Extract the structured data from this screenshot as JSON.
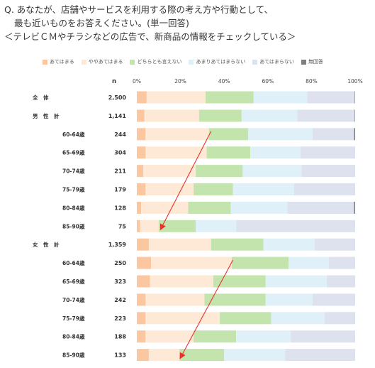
{
  "question": {
    "line1": "Q. あなたが、店舗やサービスを利用する際の考え方や行動として、",
    "line2": "最も近いものをお答えください。(単一回答)",
    "line3": "＜テレビＣＭやチラシなどの広告で、新商品の情報をチェックしている＞"
  },
  "colors": [
    "#fbc7a0",
    "#fde9d6",
    "#c3e4ad",
    "#dff0f8",
    "#dde2ee",
    "#7f7f7f"
  ],
  "chart_data": {
    "type": "bar",
    "orientation": "horizontal",
    "stacked": true,
    "n_header": "n",
    "xlim": [
      0,
      100
    ],
    "xticks": [
      "0%",
      "20%",
      "40%",
      "60%",
      "80%",
      "100%"
    ],
    "legend": [
      "あてはまる",
      "ややあてはまる",
      "どちらとも言えない",
      "あまりあてはまらない",
      "あてはまらない",
      "無回答"
    ],
    "legend_position": "top",
    "rows": [
      {
        "label": "全　体",
        "group": true,
        "n": "2,500",
        "values": [
          4.5,
          27,
          22,
          24.5,
          21.8,
          0.2
        ]
      },
      {
        "label": "男　性　計",
        "group": true,
        "n": "1,141",
        "values": [
          3.5,
          25,
          19.5,
          25.5,
          26.3,
          0.2
        ]
      },
      {
        "label": "60-64歳",
        "group": false,
        "n": "244",
        "values": [
          4,
          29,
          18,
          29.5,
          19,
          0.5
        ]
      },
      {
        "label": "65-69歳",
        "group": false,
        "n": "304",
        "values": [
          4,
          28,
          20,
          23,
          25,
          0
        ]
      },
      {
        "label": "70-74歳",
        "group": false,
        "n": "211",
        "values": [
          3,
          24,
          21.5,
          27,
          24.5,
          0
        ]
      },
      {
        "label": "75-79歳",
        "group": false,
        "n": "179",
        "values": [
          4,
          22,
          18,
          28,
          28,
          0
        ]
      },
      {
        "label": "80-84歳",
        "group": false,
        "n": "128",
        "values": [
          2,
          21.5,
          19.5,
          26,
          30.5,
          0.5
        ]
      },
      {
        "label": "85-90歳",
        "group": false,
        "n": "75",
        "values": [
          1.5,
          8.5,
          17,
          18.5,
          54.5,
          0
        ]
      },
      {
        "label": "女　性　計",
        "group": true,
        "n": "1,359",
        "values": [
          5.5,
          28.5,
          24,
          23.5,
          18.5,
          0
        ]
      },
      {
        "label": "60-64歳",
        "group": false,
        "n": "250",
        "values": [
          6.5,
          37,
          26,
          18.5,
          12,
          0
        ]
      },
      {
        "label": "65-69歳",
        "group": false,
        "n": "323",
        "values": [
          6,
          29,
          24,
          28,
          13,
          0
        ]
      },
      {
        "label": "70-74歳",
        "group": false,
        "n": "242",
        "values": [
          4,
          27,
          28,
          21.5,
          19.5,
          0
        ]
      },
      {
        "label": "75-79歳",
        "group": false,
        "n": "223",
        "values": [
          4,
          34,
          23.5,
          24.5,
          14,
          0
        ]
      },
      {
        "label": "80-84歳",
        "group": false,
        "n": "188",
        "values": [
          4,
          22,
          19.5,
          25,
          29.5,
          0
        ]
      },
      {
        "label": "85-90歳",
        "group": false,
        "n": "133",
        "values": [
          5.5,
          14,
          20.5,
          28,
          32,
          0
        ]
      }
    ],
    "annotations": [
      {
        "type": "arrow",
        "color": "#e8312a",
        "from_row": 2,
        "from_pct": 34,
        "to_row": 7,
        "to_pct": 11
      },
      {
        "type": "arrow",
        "color": "#e8312a",
        "from_row": 9,
        "from_pct": 44,
        "to_row": 14,
        "to_pct": 20
      }
    ]
  }
}
